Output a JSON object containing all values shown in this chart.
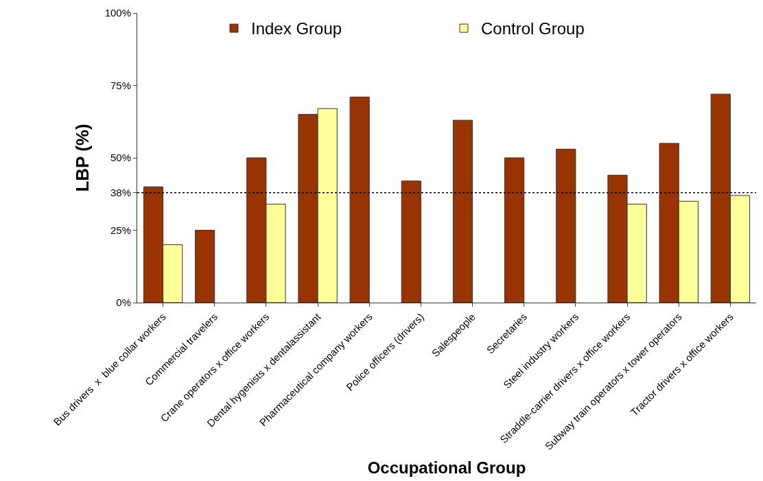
{
  "chart_data": {
    "type": "bar",
    "xlabel": "Occupational Group",
    "ylabel": "LBP (%)",
    "categories": [
      "Bus drivers  x  blue collar workers",
      "Commercial travelers",
      "Crane operators x office workers",
      "Dental hygenists x dentalassistant",
      "Pharmaceutical company workers",
      "Police officers (drivers)",
      "Salespeople",
      "Secretaries",
      "Steel industry workers",
      "Straddle-carrier drivers x office workers",
      "Subway train operators x tower operators",
      "Tractor drivers x office workers"
    ],
    "series": [
      {
        "name": "Index Group",
        "color": "#993300",
        "values": [
          40,
          25,
          50,
          65,
          71,
          42,
          63,
          50,
          53,
          44,
          55,
          72
        ]
      },
      {
        "name": "Control Group",
        "color": "#ffff99",
        "values": [
          20,
          null,
          34,
          67,
          null,
          null,
          null,
          null,
          null,
          34,
          35,
          37
        ]
      }
    ],
    "ylim": [
      0,
      100
    ],
    "yticks": [
      {
        "value": 0,
        "label": "0%"
      },
      {
        "value": 25,
        "label": "25%"
      },
      {
        "value": 38,
        "label": "38%"
      },
      {
        "value": 50,
        "label": "50%"
      },
      {
        "value": 75,
        "label": "75%"
      },
      {
        "value": 100,
        "label": "100%"
      }
    ],
    "ref_lines": [
      {
        "axis": "y",
        "value": 38,
        "label": null,
        "color": "#000000",
        "line_style": "dotted"
      }
    ],
    "legend": "top"
  }
}
